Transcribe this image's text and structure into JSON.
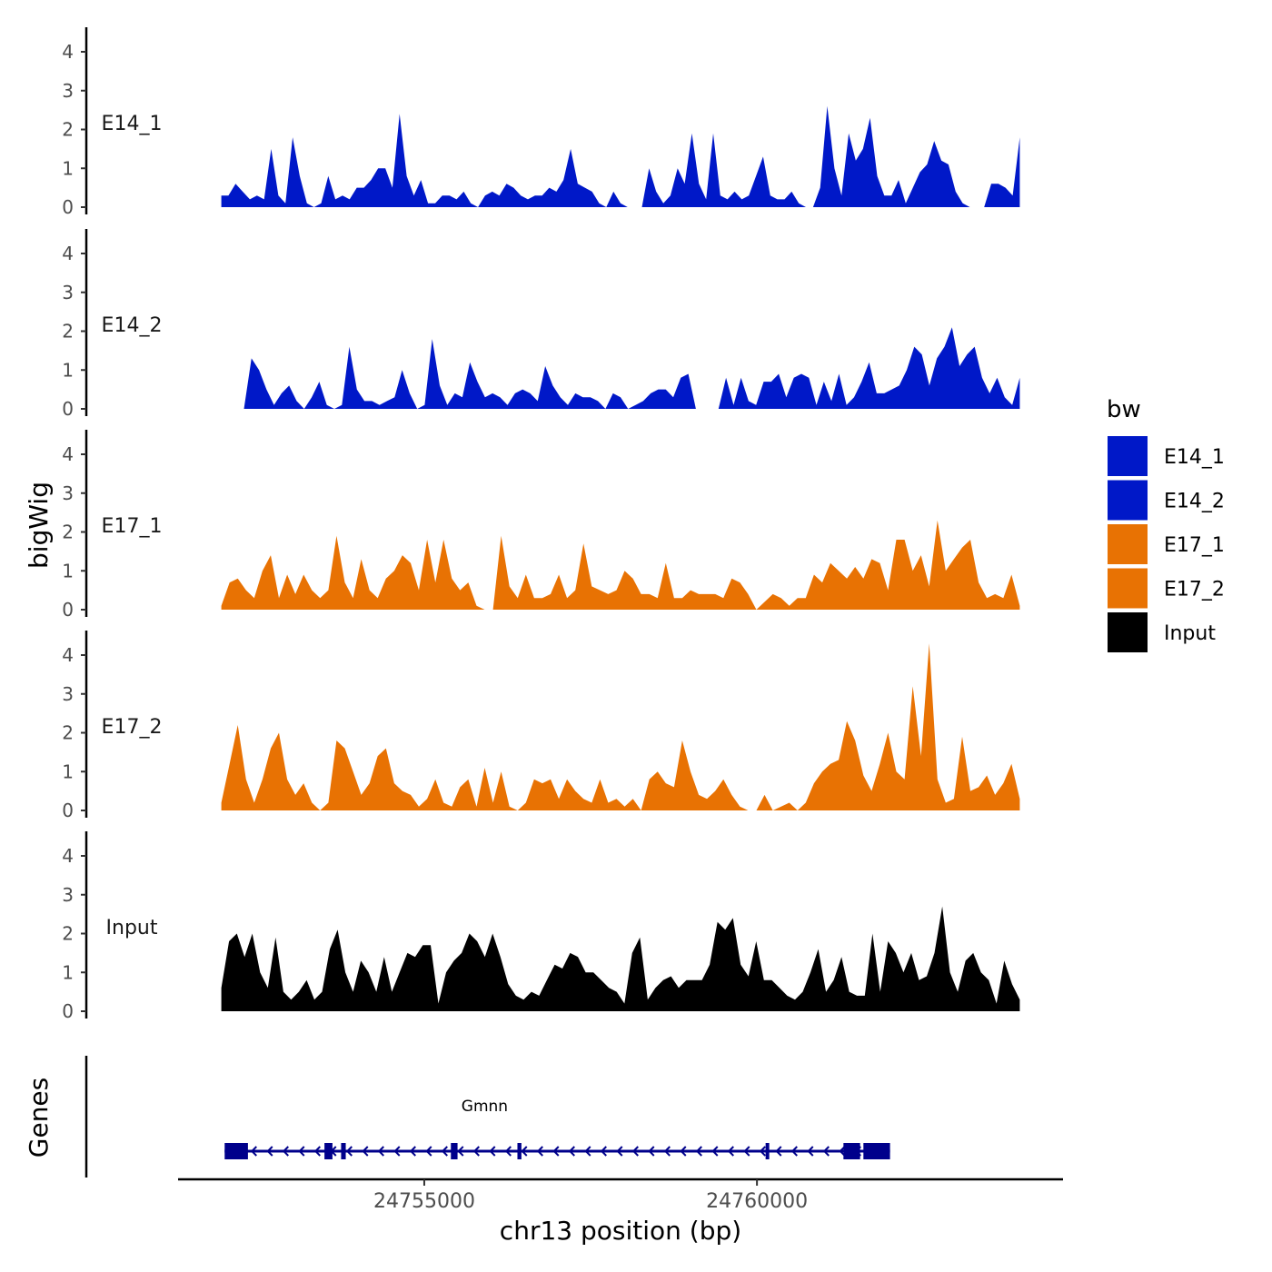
{
  "chart_data": {
    "type": "area",
    "title": "",
    "ylabel": "bigWig",
    "xlabel": "chr13 position (bp)",
    "xlim": [
      24751300,
      24764600
    ],
    "ylim": [
      0,
      4.5
    ],
    "y_ticks": [
      "0",
      "1",
      "2",
      "3",
      "4"
    ],
    "x_ticks": [
      {
        "value": 24755000,
        "label": "24755000"
      },
      {
        "value": 24760000,
        "label": "24760000"
      }
    ],
    "data_x_range": [
      24751950,
      24763950
    ],
    "legend": {
      "title": "bw",
      "position": "right",
      "entries": [
        {
          "label": "E14_1",
          "color": "#0018c8"
        },
        {
          "label": "E14_2",
          "color": "#0018c8"
        },
        {
          "label": "E17_1",
          "color": "#e87203"
        },
        {
          "label": "E17_2",
          "color": "#e87203"
        },
        {
          "label": "Input",
          "color": "#000000"
        }
      ]
    },
    "tracks": [
      {
        "name": "E14_1",
        "color": "#0018c8",
        "values": [
          0.3,
          0.3,
          0.6,
          0.4,
          0.2,
          0.3,
          0.2,
          1.5,
          0.3,
          0.1,
          1.8,
          0.8,
          0.1,
          0,
          0.1,
          0.8,
          0.2,
          0.3,
          0.2,
          0.5,
          0.5,
          0.7,
          1.0,
          1.0,
          0.5,
          2.4,
          0.8,
          0.3,
          0.7,
          0.1,
          0.1,
          0.3,
          0.3,
          0.2,
          0.4,
          0.1,
          0,
          0.3,
          0.4,
          0.3,
          0.6,
          0.5,
          0.3,
          0.2,
          0.3,
          0.3,
          0.5,
          0.4,
          0.7,
          1.5,
          0.6,
          0.5,
          0.4,
          0.1,
          0,
          0.4,
          0.1,
          0,
          0,
          0,
          1.0,
          0.4,
          0.1,
          0.3,
          1.0,
          0.6,
          1.9,
          0.6,
          0.2,
          1.9,
          0.3,
          0.2,
          0.4,
          0.2,
          0.3,
          0.8,
          1.3,
          0.3,
          0.2,
          0.2,
          0.4,
          0.1,
          0,
          0,
          0.5,
          2.6,
          1.0,
          0.3,
          1.9,
          1.2,
          1.5,
          2.3,
          0.8,
          0.3,
          0.3,
          0.7,
          0.1,
          0.5,
          0.9,
          1.1,
          1.7,
          1.2,
          1.1,
          0.4,
          0.1,
          0,
          0,
          0,
          0.6,
          0.6,
          0.5,
          0.3,
          1.8
        ]
      },
      {
        "name": "E14_2",
        "color": "#0018c8",
        "values": [
          0,
          0,
          0,
          0,
          1.3,
          1.0,
          0.5,
          0.1,
          0.4,
          0.6,
          0.2,
          0,
          0.3,
          0.7,
          0.1,
          0,
          0.1,
          1.6,
          0.5,
          0.2,
          0.2,
          0.1,
          0.2,
          0.3,
          1.0,
          0.4,
          0,
          0.1,
          1.8,
          0.6,
          0.1,
          0.4,
          0.3,
          1.2,
          0.7,
          0.3,
          0.4,
          0.3,
          0.1,
          0.4,
          0.5,
          0.4,
          0.2,
          1.1,
          0.6,
          0.3,
          0.1,
          0.4,
          0.3,
          0.3,
          0.2,
          0,
          0.4,
          0.3,
          0,
          0.1,
          0.2,
          0.4,
          0.5,
          0.5,
          0.3,
          0.8,
          0.9,
          0,
          0,
          0,
          0,
          0.8,
          0.1,
          0.8,
          0.2,
          0.1,
          0.7,
          0.7,
          0.9,
          0.3,
          0.8,
          0.9,
          0.8,
          0.1,
          0.7,
          0.2,
          0.9,
          0.1,
          0.3,
          0.7,
          1.2,
          0.4,
          0.4,
          0.5,
          0.6,
          1.0,
          1.6,
          1.4,
          0.6,
          1.3,
          1.6,
          2.1,
          1.1,
          1.4,
          1.6,
          0.8,
          0.4,
          0.8,
          0.3,
          0.1,
          0.8
        ]
      },
      {
        "name": "E17_1",
        "color": "#e87203",
        "values": [
          0.1,
          0.7,
          0.8,
          0.5,
          0.3,
          1.0,
          1.4,
          0.3,
          0.9,
          0.4,
          0.9,
          0.5,
          0.3,
          0.5,
          1.9,
          0.7,
          0.3,
          1.3,
          0.5,
          0.3,
          0.8,
          1.0,
          1.4,
          1.2,
          0.5,
          1.8,
          0.7,
          1.8,
          0.8,
          0.5,
          0.7,
          0.1,
          0,
          0,
          1.9,
          0.6,
          0.3,
          0.9,
          0.3,
          0.3,
          0.4,
          0.9,
          0.3,
          0.5,
          1.7,
          0.6,
          0.5,
          0.4,
          0.5,
          1.0,
          0.8,
          0.4,
          0.4,
          0.3,
          1.2,
          0.3,
          0.3,
          0.5,
          0.4,
          0.4,
          0.4,
          0.3,
          0.8,
          0.7,
          0.4,
          0,
          0.2,
          0.4,
          0.3,
          0.1,
          0.3,
          0.3,
          0.9,
          0.7,
          1.2,
          1.0,
          0.8,
          1.1,
          0.8,
          1.3,
          1.2,
          0.5,
          1.8,
          1.8,
          1.0,
          1.4,
          0.6,
          2.3,
          1.0,
          1.3,
          1.6,
          1.8,
          0.7,
          0.3,
          0.4,
          0.3,
          0.9,
          0.1
        ]
      },
      {
        "name": "E17_2",
        "color": "#e87203",
        "values": [
          0.2,
          1.2,
          2.2,
          0.8,
          0.2,
          0.8,
          1.6,
          2.0,
          0.8,
          0.4,
          0.7,
          0.2,
          0,
          0.2,
          1.8,
          1.6,
          1.0,
          0.4,
          0.7,
          1.4,
          1.6,
          0.7,
          0.5,
          0.4,
          0.1,
          0.3,
          0.8,
          0.2,
          0.1,
          0.6,
          0.8,
          0.1,
          1.1,
          0.2,
          1.0,
          0.1,
          0,
          0.2,
          0.8,
          0.7,
          0.8,
          0.3,
          0.8,
          0.5,
          0.3,
          0.2,
          0.8,
          0.2,
          0.3,
          0.1,
          0.3,
          0,
          0.8,
          1.0,
          0.7,
          0.6,
          1.8,
          1.0,
          0.4,
          0.3,
          0.5,
          0.8,
          0.4,
          0.1,
          0,
          0,
          0.4,
          0,
          0.1,
          0.2,
          0,
          0.2,
          0.7,
          1.0,
          1.2,
          1.3,
          2.3,
          1.8,
          0.9,
          0.5,
          1.2,
          2.0,
          1.0,
          0.8,
          3.2,
          1.4,
          4.3,
          0.8,
          0.2,
          0.3,
          1.9,
          0.5,
          0.6,
          0.9,
          0.4,
          0.7,
          1.2,
          0.3
        ]
      },
      {
        "name": "Input",
        "color": "#000000",
        "values": [
          0.6,
          1.8,
          2.0,
          1.4,
          2.0,
          1.0,
          0.6,
          1.9,
          0.5,
          0.3,
          0.5,
          0.8,
          0.3,
          0.5,
          1.6,
          2.1,
          1.0,
          0.5,
          1.3,
          1.0,
          0.5,
          1.4,
          0.5,
          1.0,
          1.5,
          1.4,
          1.7,
          1.7,
          0.2,
          1.0,
          1.3,
          1.5,
          2.0,
          1.8,
          1.4,
          2.0,
          1.4,
          0.7,
          0.4,
          0.3,
          0.5,
          0.4,
          0.8,
          1.2,
          1.1,
          1.5,
          1.4,
          1.0,
          1.0,
          0.8,
          0.6,
          0.5,
          0.2,
          1.5,
          1.9,
          0.3,
          0.6,
          0.8,
          0.9,
          0.6,
          0.8,
          0.8,
          0.8,
          1.2,
          2.3,
          2.1,
          2.4,
          1.2,
          0.9,
          1.8,
          0.8,
          0.8,
          0.6,
          0.4,
          0.3,
          0.5,
          1.0,
          1.6,
          0.5,
          0.8,
          1.4,
          0.5,
          0.4,
          0.4,
          2.0,
          0.5,
          1.8,
          1.5,
          1.0,
          1.5,
          0.8,
          0.9,
          1.5,
          2.7,
          1.0,
          0.5,
          1.3,
          1.5,
          1.0,
          0.8,
          0.2,
          1.3,
          0.7,
          0.3
        ]
      }
    ],
    "gene": {
      "name": "Gmnn",
      "strand": "-",
      "start": 24752000,
      "end": 24762000,
      "exons": [
        {
          "start": 24752000,
          "end": 24752350
        },
        {
          "start": 24753500,
          "end": 24753620
        },
        {
          "start": 24753750,
          "end": 24753820
        },
        {
          "start": 24755400,
          "end": 24755500
        },
        {
          "start": 24756400,
          "end": 24756460
        },
        {
          "start": 24760130,
          "end": 24760170
        },
        {
          "start": 24761300,
          "end": 24761550
        },
        {
          "start": 24761600,
          "end": 24762000
        }
      ],
      "color": "#00008b",
      "track_label": "Genes"
    }
  }
}
